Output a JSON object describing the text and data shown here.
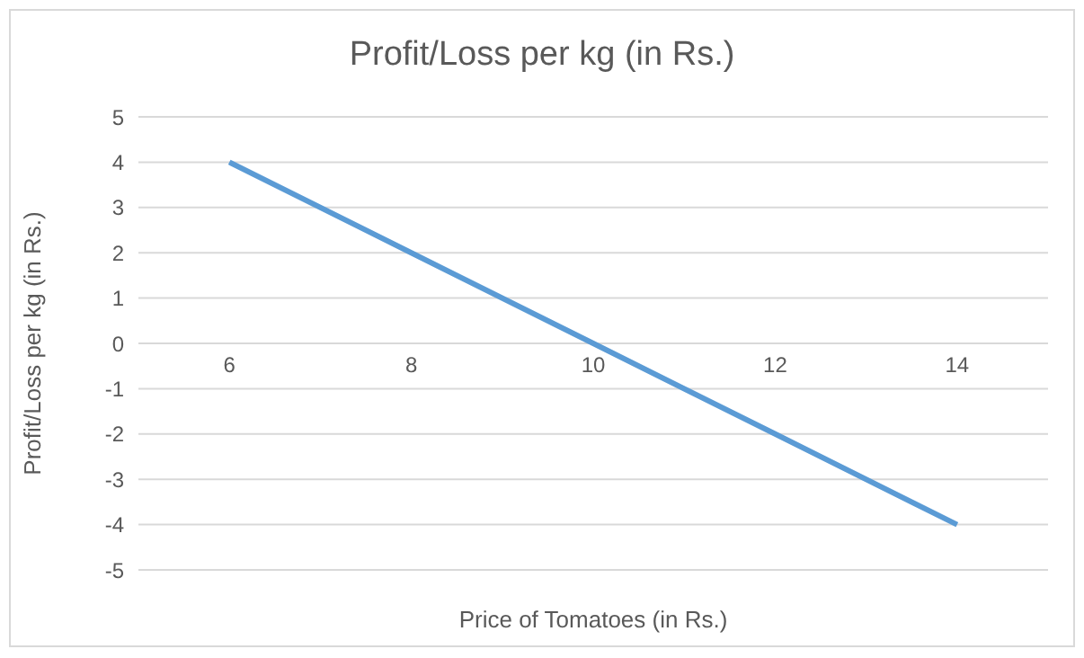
{
  "chart_data": {
    "type": "line",
    "title": "Profit/Loss per kg (in Rs.)",
    "xlabel": "Price of Tomatoes (in Rs.)",
    "ylabel": "Profit/Loss per kg (in Rs.)",
    "categories": [
      "6",
      "8",
      "10",
      "12",
      "14"
    ],
    "series": [
      {
        "color": "#5b9bd5",
        "values": [
          4,
          2,
          0,
          -2,
          -4
        ]
      }
    ],
    "ylim": [
      -5,
      5
    ],
    "yticks": [
      -5,
      -4,
      -3,
      -2,
      -1,
      0,
      1,
      2,
      3,
      4,
      5
    ],
    "grid": "y",
    "marker": "none",
    "line_style": "solid"
  }
}
